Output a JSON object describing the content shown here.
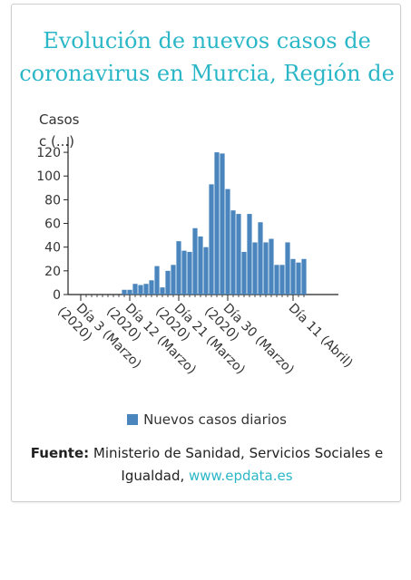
{
  "title_lines": [
    "Evolución de nuevos casos de",
    "coronavirus en Murcia, Región de"
  ],
  "colors": {
    "accent": "#2bb7c7",
    "bar": "#4a86bd"
  },
  "chart_data": {
    "type": "bar",
    "ylabel_lines": [
      "Casos",
      "c (...)"
    ],
    "y_ticks": [
      "0",
      "20",
      "40",
      "60",
      "80",
      "100",
      "120"
    ],
    "ylim": [
      0,
      130
    ],
    "x_tick_labels": [
      [
        "Día 3 (Marzo)",
        "(2020)"
      ],
      [
        "Día 12 (Marzo)",
        "(2020)"
      ],
      [
        "Día 21 (Marzo)",
        "(2020)"
      ],
      [
        "Día 30 (Marzo)",
        "(2020)"
      ],
      [
        "Día 11 (Abril)"
      ]
    ],
    "x_tick_day_index": [
      0,
      9,
      18,
      27,
      39
    ],
    "grid": false,
    "legend": "bottom",
    "series": [
      {
        "name": "Nuevos casos diarios",
        "values": [
          0,
          0,
          0,
          0,
          0,
          0,
          0,
          0,
          4,
          4,
          9,
          8,
          9,
          12,
          24,
          6,
          20,
          25,
          45,
          37,
          36,
          56,
          49,
          40,
          93,
          120,
          119,
          89,
          71,
          68,
          36,
          68,
          44,
          61,
          44,
          47,
          25,
          25,
          44,
          30,
          27,
          30
        ]
      }
    ]
  },
  "source": {
    "label": "Fuente:",
    "text": " Ministerio de Sanidad, Servicios Sociales e Igualdad, ",
    "link": "www.epdata.es"
  }
}
